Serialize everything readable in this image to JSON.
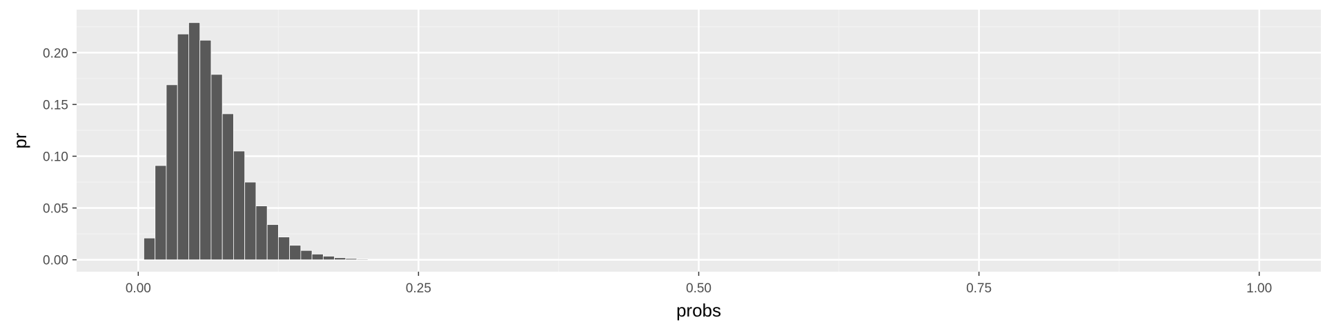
{
  "chart_data": {
    "type": "bar",
    "title": "",
    "xlabel": "probs",
    "ylabel": "pr",
    "xlim": [
      -0.055,
      1.055
    ],
    "ylim": [
      -0.0115,
      0.2415
    ],
    "x_ticks": [
      0.0,
      0.25,
      0.5,
      0.75,
      1.0
    ],
    "x_tick_labels": [
      "0.00",
      "0.25",
      "0.50",
      "0.75",
      "1.00"
    ],
    "y_ticks": [
      0.0,
      0.05,
      0.1,
      0.15,
      0.2
    ],
    "y_tick_labels": [
      "0.00",
      "0.05",
      "0.10",
      "0.15",
      "0.20"
    ],
    "grid": true,
    "legend": "none",
    "bar_width": 0.01,
    "x": [
      0.01,
      0.02,
      0.03,
      0.04,
      0.05,
      0.06,
      0.07,
      0.08,
      0.09,
      0.1,
      0.11,
      0.12,
      0.13,
      0.14,
      0.15,
      0.16,
      0.17,
      0.18,
      0.19,
      0.2,
      0.21,
      0.22,
      0.23
    ],
    "values": [
      0.021,
      0.091,
      0.169,
      0.218,
      0.229,
      0.212,
      0.179,
      0.141,
      0.105,
      0.075,
      0.052,
      0.034,
      0.022,
      0.014,
      0.009,
      0.0055,
      0.0035,
      0.002,
      0.0012,
      0.0007,
      0.0004,
      0.0002,
      0.0001
    ]
  },
  "colors": {
    "panel_background": "#ebebeb",
    "grid_major": "#ffffff",
    "grid_minor": "#f2f2f2",
    "bar_fill": "#595959",
    "bar_outline": "#ffffff"
  }
}
